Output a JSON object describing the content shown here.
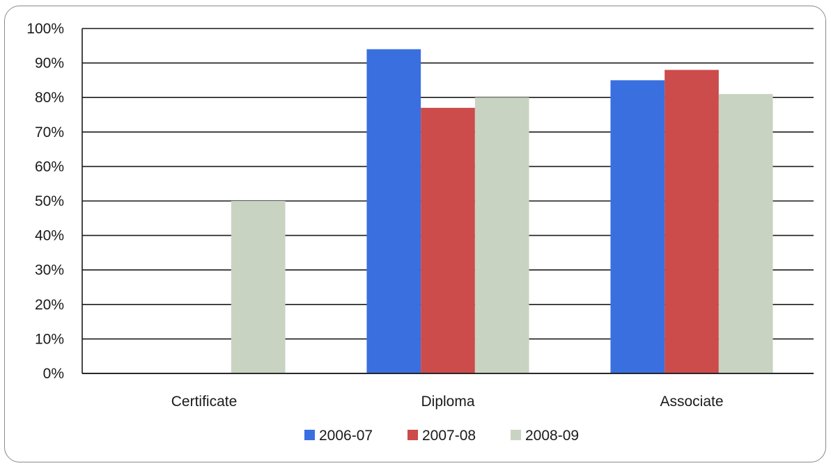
{
  "chart_data": {
    "type": "bar",
    "title": "",
    "xlabel": "",
    "ylabel": "",
    "categories": [
      "Certificate",
      "Diploma",
      "Associate"
    ],
    "series": [
      {
        "name": "2006-07",
        "color": "#3a6fe0",
        "values": [
          null,
          94,
          85
        ]
      },
      {
        "name": "2007-08",
        "color": "#cc4b4b",
        "values": [
          null,
          77,
          88
        ]
      },
      {
        "name": "2008-09",
        "color": "#c9d3c2",
        "values": [
          50,
          80,
          81
        ]
      }
    ],
    "ylim": [
      0,
      100
    ],
    "yticks": [
      0,
      10,
      20,
      30,
      40,
      50,
      60,
      70,
      80,
      90,
      100
    ],
    "ytick_labels": [
      "0%",
      "10%",
      "20%",
      "30%",
      "40%",
      "50%",
      "60%",
      "70%",
      "80%",
      "90%",
      "100%"
    ],
    "grid": true,
    "legend_position": "bottom"
  }
}
